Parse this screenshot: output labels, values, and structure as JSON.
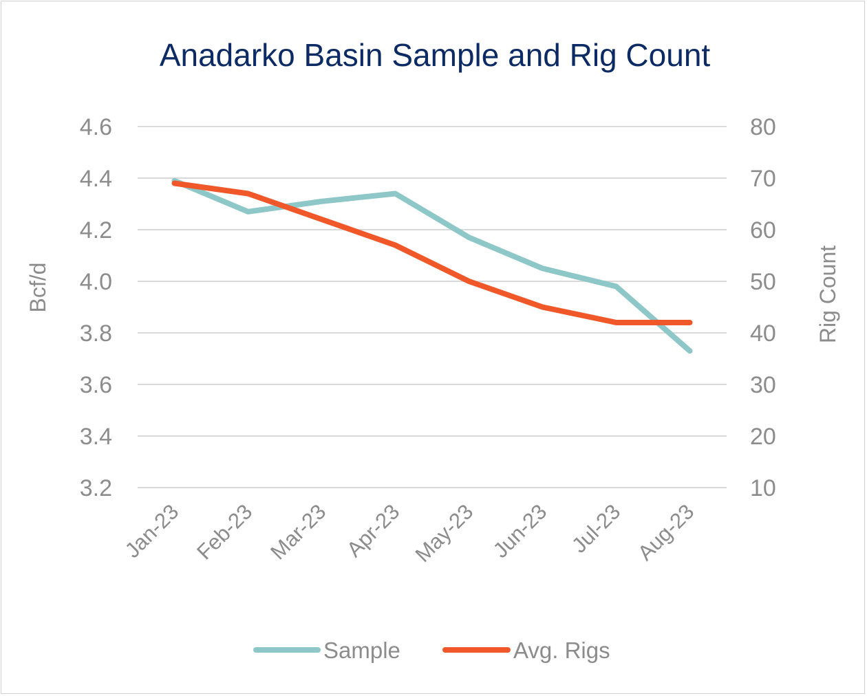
{
  "chart_data": {
    "type": "line",
    "title": "Anadarko Basin Sample and Rig Count",
    "categories": [
      "Jan-23",
      "Feb-23",
      "Mar-23",
      "Apr-23",
      "May-23",
      "Jun-23",
      "Jul-23",
      "Aug-23"
    ],
    "y_left": {
      "label": "Bcf/d",
      "range": [
        3.2,
        4.6
      ],
      "ticks": [
        "4.6",
        "4.4",
        "4.2",
        "4.0",
        "3.8",
        "3.6",
        "3.4",
        "3.2"
      ]
    },
    "y_right": {
      "label": "Rig Count",
      "range": [
        10,
        80
      ],
      "ticks": [
        "80",
        "70",
        "60",
        "50",
        "40",
        "30",
        "20",
        "10"
      ]
    },
    "series": [
      {
        "name": "Sample",
        "axis": "left",
        "color": "#8ec7c7",
        "values": [
          4.39,
          4.27,
          4.31,
          4.34,
          4.17,
          4.05,
          3.98,
          3.73
        ]
      },
      {
        "name": "Avg. Rigs",
        "axis": "right",
        "color": "#f0582a",
        "values": [
          69,
          67,
          62,
          57,
          50,
          45,
          42,
          42
        ]
      }
    ],
    "grid": true,
    "legend": "bottom"
  }
}
